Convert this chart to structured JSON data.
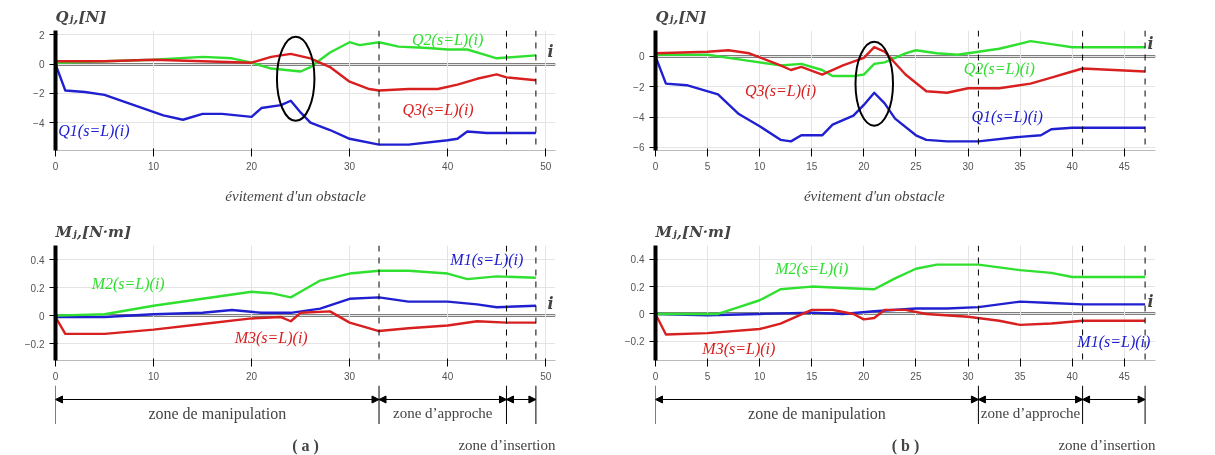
{
  "chart_data": [
    {
      "type": "line",
      "ylabel": "Qⱼ,[N]",
      "xlabel": "i",
      "xlim": [
        0,
        51
      ],
      "ylim": [
        -5.9,
        2.3
      ],
      "xticks": [
        0,
        10,
        20,
        30,
        40,
        50
      ],
      "yticks": [
        -4,
        -2,
        0,
        2
      ],
      "grid": true,
      "line_style": "solid",
      "series": [
        {
          "name": "Q1(s=L)(i)",
          "color": "#2020d0",
          "x": [
            0,
            1,
            3,
            5,
            8,
            11,
            13,
            15,
            17,
            20,
            21,
            23,
            24,
            25,
            26,
            28,
            30,
            33,
            36,
            40,
            41,
            42,
            44,
            46,
            49
          ],
          "values": [
            0,
            -1.8,
            -1.9,
            -2.1,
            -2.8,
            -3.5,
            -3.8,
            -3.4,
            -3.4,
            -3.6,
            -3.0,
            -2.8,
            -2.5,
            -3.3,
            -4.0,
            -4.5,
            -5.1,
            -5.5,
            -5.5,
            -5.2,
            -5.1,
            -4.6,
            -4.7,
            -4.7,
            -4.7
          ]
        },
        {
          "name": "Q2(s=L)(i)",
          "color": "#30e030",
          "x": [
            0,
            5,
            10,
            15,
            18,
            20,
            22,
            25,
            26,
            28,
            30,
            31,
            33,
            35,
            38,
            40,
            42,
            44,
            45,
            49
          ],
          "values": [
            0.1,
            0.2,
            0.3,
            0.5,
            0.4,
            0.1,
            -0.3,
            -0.5,
            -0.2,
            0.8,
            1.5,
            1.3,
            1.5,
            1.2,
            1.1,
            1.0,
            1.0,
            0.6,
            0.4,
            0.6
          ]
        },
        {
          "name": "Q3(s=L)(i)",
          "color": "#d82020",
          "x": [
            0,
            5,
            10,
            15,
            20,
            22,
            24,
            26,
            28,
            30,
            32,
            33,
            36,
            39,
            41,
            43,
            45,
            46,
            49
          ],
          "values": [
            0.2,
            0.2,
            0.3,
            0.2,
            0.1,
            0.5,
            0.7,
            0.4,
            -0.2,
            -1.2,
            -1.7,
            -1.8,
            -1.7,
            -1.7,
            -1.4,
            -1.0,
            -0.7,
            -0.9,
            -1.1
          ]
        }
      ],
      "ref_lines": [
        {
          "axis": "x",
          "value": 33,
          "line_style": "dashed"
        },
        {
          "axis": "x",
          "value": 46,
          "line_style": "dashed"
        },
        {
          "axis": "x",
          "value": 49,
          "line_style": "dashed"
        }
      ],
      "annotations": [
        "évitement d'un obstacle"
      ]
    },
    {
      "type": "line",
      "ylabel": "Mⱼ,[N·m]",
      "xlabel": "i",
      "xlim": [
        0,
        51
      ],
      "ylim": [
        -0.32,
        0.5
      ],
      "xticks": [
        0,
        10,
        20,
        30,
        40,
        50
      ],
      "yticks": [
        -0.2,
        0,
        0.2,
        0.4
      ],
      "grid": true,
      "line_style": "solid",
      "series": [
        {
          "name": "M1(s=L)(i)",
          "color": "#2020d0",
          "x": [
            0,
            5,
            10,
            15,
            18,
            21,
            24,
            27,
            30,
            33,
            36,
            40,
            43,
            45,
            49
          ],
          "values": [
            -0.01,
            -0.01,
            0.01,
            0.02,
            0.04,
            0.02,
            0.02,
            0.05,
            0.12,
            0.13,
            0.1,
            0.1,
            0.08,
            0.06,
            0.07
          ]
        },
        {
          "name": "M2(s=L)(i)",
          "color": "#30e030",
          "x": [
            0,
            5,
            10,
            15,
            20,
            22,
            24,
            25,
            27,
            30,
            33,
            36,
            40,
            42,
            45,
            49
          ],
          "values": [
            0,
            0.01,
            0.07,
            0.12,
            0.17,
            0.16,
            0.13,
            0.17,
            0.25,
            0.3,
            0.32,
            0.32,
            0.3,
            0.26,
            0.28,
            0.27
          ]
        },
        {
          "name": "M3(s=L)(i)",
          "color": "#d82020",
          "x": [
            0,
            1,
            5,
            10,
            15,
            20,
            23,
            24,
            25,
            28,
            30,
            33,
            36,
            40,
            43,
            46,
            49
          ],
          "values": [
            -0.01,
            -0.13,
            -0.13,
            -0.1,
            -0.06,
            -0.02,
            -0.01,
            -0.04,
            0.02,
            0.03,
            -0.05,
            -0.11,
            -0.09,
            -0.07,
            -0.04,
            -0.05,
            -0.05
          ]
        }
      ],
      "ref_lines": [
        {
          "axis": "x",
          "value": 33,
          "line_style": "dashed"
        },
        {
          "axis": "x",
          "value": 46,
          "line_style": "dashed"
        },
        {
          "axis": "x",
          "value": 49,
          "line_style": "dashed"
        }
      ],
      "annotations": [
        "zone de manipulation",
        "zone d’approche",
        "zone d’insertion",
        "( a )"
      ]
    },
    {
      "type": "line",
      "ylabel": "Qⱼ,[N]",
      "xlabel": "i",
      "xlim": [
        0,
        48
      ],
      "ylim": [
        -6.2,
        1.7
      ],
      "xticks": [
        0,
        5,
        10,
        15,
        20,
        25,
        30,
        35,
        40,
        45
      ],
      "yticks": [
        -6,
        -4,
        -2,
        0
      ],
      "grid": true,
      "line_style": "solid",
      "series": [
        {
          "name": "Q1(s=L)(i)",
          "color": "#2020d0",
          "x": [
            0,
            1,
            3,
            6,
            8,
            10,
            12,
            13,
            14,
            16,
            17,
            19,
            20,
            21,
            22,
            23,
            25,
            26,
            28,
            31,
            35,
            37,
            38,
            40,
            41,
            47
          ],
          "values": [
            0,
            -1.8,
            -1.9,
            -2.5,
            -3.8,
            -4.6,
            -5.5,
            -5.6,
            -5.2,
            -5.2,
            -4.5,
            -3.9,
            -3.2,
            -2.4,
            -3.1,
            -4.1,
            -5.2,
            -5.5,
            -5.6,
            -5.6,
            -5.3,
            -5.2,
            -4.8,
            -4.7,
            -4.7,
            -4.7
          ]
        },
        {
          "name": "Q2(s=L)(i)",
          "color": "#30e030",
          "x": [
            0,
            5,
            8,
            12,
            14,
            16,
            17,
            19,
            20,
            21,
            22,
            24,
            25,
            27,
            29,
            31,
            33,
            36,
            38,
            40,
            44,
            47
          ],
          "values": [
            0.1,
            0.1,
            -0.2,
            -0.6,
            -0.5,
            -0.9,
            -1.3,
            -1.3,
            -1.2,
            -0.5,
            -0.4,
            0.2,
            0.4,
            0.2,
            0.1,
            0.3,
            0.5,
            1.0,
            0.8,
            0.6,
            0.6,
            0.6
          ]
        },
        {
          "name": "Q3(s=L)(i)",
          "color": "#d82020",
          "x": [
            0,
            5,
            7,
            9,
            12,
            13,
            14,
            16,
            18,
            20,
            21,
            22,
            24,
            26,
            28,
            30,
            33,
            36,
            38,
            40,
            41,
            47
          ],
          "values": [
            0.2,
            0.3,
            0.4,
            0.2,
            -0.6,
            -0.9,
            -0.7,
            -1.2,
            -0.6,
            -0.1,
            0.6,
            0.3,
            -1.2,
            -2.3,
            -2.4,
            -2.1,
            -2.1,
            -1.8,
            -1.4,
            -1.0,
            -0.8,
            -1.0
          ]
        }
      ],
      "ref_lines": [
        {
          "axis": "x",
          "value": 31,
          "line_style": "dashed"
        },
        {
          "axis": "x",
          "value": 41,
          "line_style": "dashed"
        },
        {
          "axis": "x",
          "value": 47,
          "line_style": "dashed"
        }
      ],
      "annotations": [
        "évitement d'un obstacle"
      ]
    },
    {
      "type": "line",
      "ylabel": "Mⱼ,[N·m]",
      "xlabel": "i",
      "xlim": [
        0,
        48
      ],
      "ylim": [
        -0.34,
        0.5
      ],
      "xticks": [
        0,
        5,
        10,
        15,
        20,
        25,
        30,
        35,
        40,
        45
      ],
      "yticks": [
        -0.2,
        0,
        0.2,
        0.4
      ],
      "grid": true,
      "line_style": "solid",
      "series": [
        {
          "name": "M1(s=L)(i)",
          "color": "#2020d0",
          "x": [
            0,
            5,
            10,
            15,
            18,
            21,
            25,
            28,
            31,
            35,
            38,
            41,
            47
          ],
          "values": [
            0,
            -0.01,
            0,
            0.01,
            0,
            0.02,
            0.04,
            0.04,
            0.05,
            0.09,
            0.08,
            0.07,
            0.07
          ]
        },
        {
          "name": "M2(s=L)(i)",
          "color": "#30e030",
          "x": [
            0,
            6,
            8,
            10,
            12,
            15,
            18,
            21,
            23,
            25,
            27,
            31,
            35,
            38,
            40,
            47
          ],
          "values": [
            0,
            0,
            0.05,
            0.1,
            0.18,
            0.2,
            0.19,
            0.18,
            0.26,
            0.33,
            0.36,
            0.36,
            0.32,
            0.3,
            0.27,
            0.27
          ]
        },
        {
          "name": "M3(s=L)(i)",
          "color": "#d82020",
          "x": [
            0,
            1,
            5,
            10,
            12,
            15,
            17,
            19,
            20,
            21,
            22,
            24,
            26,
            30,
            33,
            35,
            38,
            41,
            47
          ],
          "values": [
            0,
            -0.15,
            -0.14,
            -0.11,
            -0.07,
            0.03,
            0.03,
            0,
            -0.04,
            -0.03,
            0.03,
            0.03,
            0,
            -0.02,
            -0.05,
            -0.08,
            -0.07,
            -0.05,
            -0.05
          ]
        }
      ],
      "ref_lines": [
        {
          "axis": "x",
          "value": 31,
          "line_style": "dashed"
        },
        {
          "axis": "x",
          "value": 41,
          "line_style": "dashed"
        },
        {
          "axis": "x",
          "value": 47,
          "line_style": "dashed"
        }
      ],
      "annotations": [
        "zone de manipulation",
        "zone d’approche",
        "zone d’insertion",
        "( b )"
      ]
    }
  ]
}
